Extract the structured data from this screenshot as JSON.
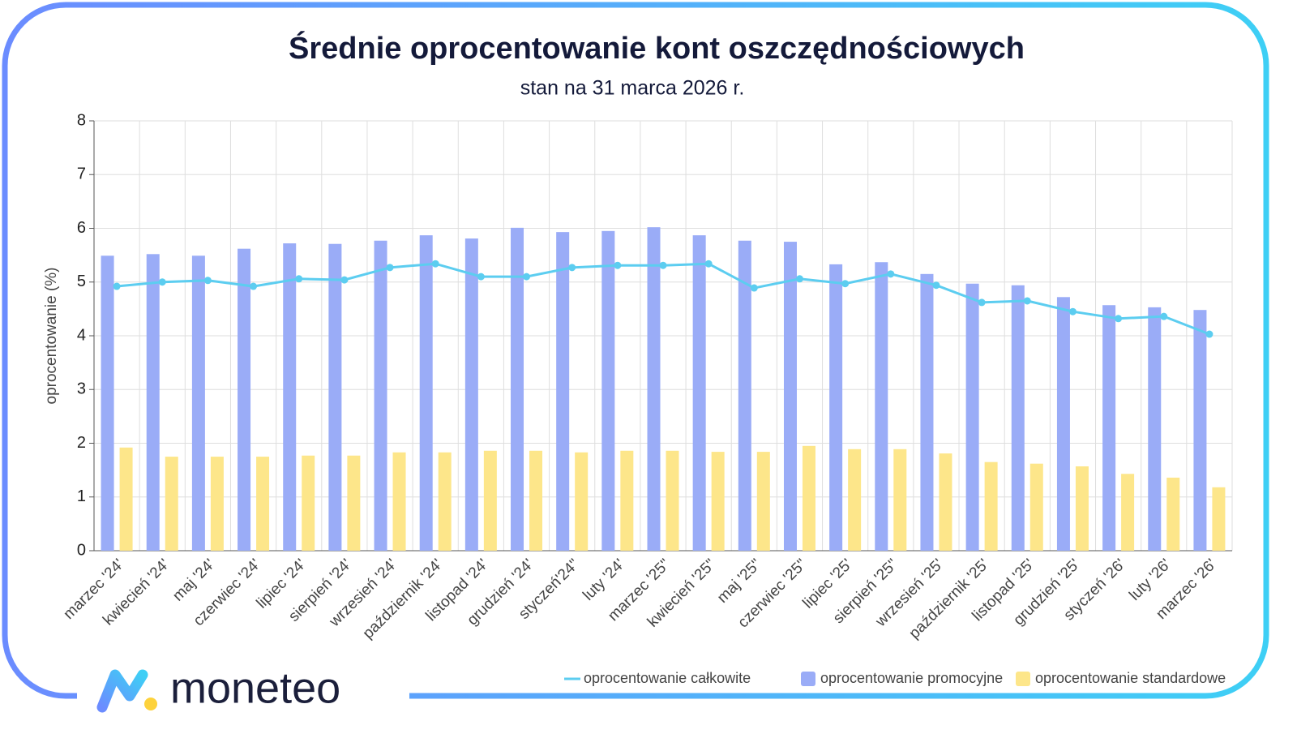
{
  "chart_data": {
    "type": "bar",
    "title": "Średnie oprocentowanie kont oszczędnościowych",
    "subtitle": "stan na 31 marca 2026 r.",
    "y_label": "oprocentowanie (%)",
    "brand": "moneteo",
    "categories": [
      "marzec '24'",
      "kwiecień '24'",
      "maj '24'",
      "czerwiec '24'",
      "lipiec '24'",
      "sierpień '24'",
      "wrzesień '24'",
      "październik '24'",
      "listopad '24'",
      "grudzień '24'",
      "styczeń'24\"",
      "luty '24'",
      "marzec '25\"",
      "kwiecień '25\"",
      "maj '25\"",
      "czerwiec '25\"",
      "lipiec '25'",
      "sierpień '25\"",
      "wrzesień '25'",
      "październik '25'",
      "listopad '25'",
      "grudzień '25'",
      "styczeń '26'",
      "luty '26'",
      "marzec '26'"
    ],
    "series": [
      {
        "name": "oprocentowanie całkowite",
        "type": "line",
        "color": "#5ccdf0",
        "values": [
          4.92,
          5.0,
          5.03,
          4.92,
          5.06,
          5.04,
          5.27,
          5.34,
          5.1,
          5.1,
          5.27,
          5.31,
          5.31,
          5.34,
          4.89,
          5.06,
          4.97,
          5.15,
          4.94,
          4.62,
          4.65,
          4.45,
          4.32,
          4.36,
          4.03
        ]
      },
      {
        "name": "oprocentowanie promocyjne",
        "type": "bar",
        "color": "#9aacf7",
        "values": [
          5.49,
          5.52,
          5.49,
          5.62,
          5.72,
          5.71,
          5.77,
          5.87,
          5.81,
          6.01,
          5.93,
          5.95,
          6.02,
          5.87,
          5.77,
          5.75,
          5.33,
          5.37,
          5.15,
          4.97,
          4.94,
          4.72,
          4.57,
          4.53,
          4.48
        ]
      },
      {
        "name": "oprocentowanie standardowe",
        "type": "bar",
        "color": "#fde68a",
        "values": [
          1.92,
          1.75,
          1.75,
          1.75,
          1.77,
          1.77,
          1.83,
          1.83,
          1.86,
          1.86,
          1.83,
          1.86,
          1.86,
          1.84,
          1.84,
          1.95,
          1.89,
          1.89,
          1.81,
          1.65,
          1.62,
          1.57,
          1.43,
          1.36,
          1.18
        ]
      }
    ],
    "ylim": [
      0,
      8
    ],
    "yticks": [
      0,
      1,
      2,
      3,
      4,
      5,
      6,
      7,
      8
    ],
    "grid": true,
    "legend": "bottom-right"
  }
}
